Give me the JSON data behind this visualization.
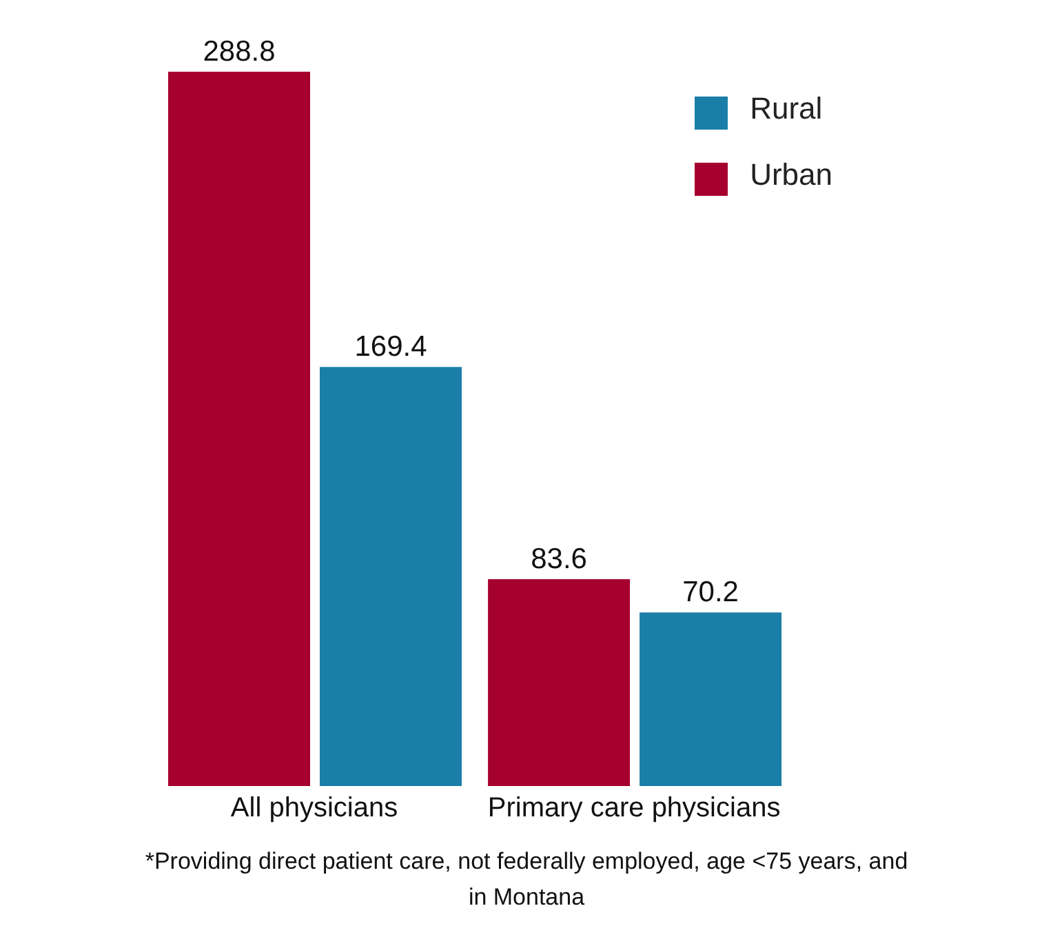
{
  "chart_data": {
    "type": "bar",
    "categories": [
      "All physicians",
      "Primary care physicians"
    ],
    "series": [
      {
        "name": "Urban",
        "color": "#a6002f",
        "values": [
          288.8,
          83.6
        ]
      },
      {
        "name": "Rural",
        "color": "#1b7ea8",
        "values": [
          169.4,
          70.2
        ]
      }
    ],
    "data_labels": true,
    "legend": "top right",
    "grid": false,
    "annotations": [
      "*Providing direct patient care, not federally employed, age <75 years, and in Montana"
    ]
  }
}
